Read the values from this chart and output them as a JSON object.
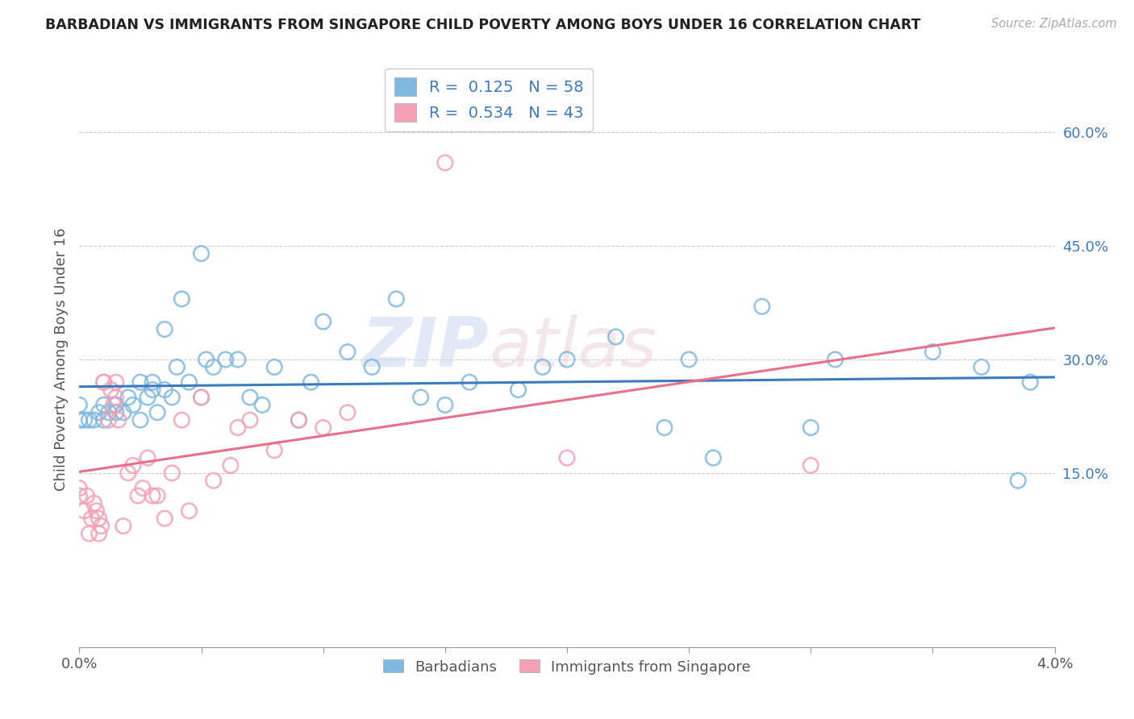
{
  "title": "BARBADIAN VS IMMIGRANTS FROM SINGAPORE CHILD POVERTY AMONG BOYS UNDER 16 CORRELATION CHART",
  "source_text": "Source: ZipAtlas.com",
  "ylabel": "Child Poverty Among Boys Under 16",
  "xlim": [
    0.0,
    4.0
  ],
  "ylim": [
    -0.08,
    0.68
  ],
  "yticks": [
    0.15,
    0.3,
    0.45,
    0.6
  ],
  "ytick_labels": [
    "15.0%",
    "30.0%",
    "45.0%",
    "60.0%"
  ],
  "color_blue": "#7fb8e0",
  "color_pink": "#f4a0b5",
  "color_blue_line": "#3c7abf",
  "color_pink_line": "#e8708a",
  "color_text_blue": "#3c7abf",
  "watermark_zip": "ZIP",
  "watermark_atlas": "atlas",
  "blue_scatter_x": [
    0.0,
    0.0,
    0.02,
    0.04,
    0.06,
    0.08,
    0.1,
    0.1,
    0.12,
    0.15,
    0.15,
    0.18,
    0.2,
    0.22,
    0.25,
    0.25,
    0.28,
    0.3,
    0.3,
    0.32,
    0.35,
    0.35,
    0.38,
    0.4,
    0.42,
    0.45,
    0.5,
    0.5,
    0.52,
    0.55,
    0.6,
    0.65,
    0.7,
    0.75,
    0.8,
    0.9,
    0.95,
    1.0,
    1.1,
    1.2,
    1.3,
    1.4,
    1.5,
    1.6,
    1.8,
    1.9,
    2.0,
    2.2,
    2.4,
    2.5,
    2.6,
    2.8,
    3.0,
    3.1,
    3.5,
    3.7,
    3.85,
    3.9
  ],
  "blue_scatter_y": [
    0.22,
    0.24,
    0.22,
    0.22,
    0.22,
    0.23,
    0.22,
    0.24,
    0.23,
    0.23,
    0.24,
    0.23,
    0.25,
    0.24,
    0.22,
    0.27,
    0.25,
    0.27,
    0.26,
    0.23,
    0.34,
    0.26,
    0.25,
    0.29,
    0.38,
    0.27,
    0.44,
    0.25,
    0.3,
    0.29,
    0.3,
    0.3,
    0.25,
    0.24,
    0.29,
    0.22,
    0.27,
    0.35,
    0.31,
    0.29,
    0.38,
    0.25,
    0.24,
    0.27,
    0.26,
    0.29,
    0.3,
    0.33,
    0.21,
    0.3,
    0.17,
    0.37,
    0.21,
    0.3,
    0.31,
    0.29,
    0.14,
    0.27
  ],
  "pink_scatter_x": [
    0.0,
    0.0,
    0.02,
    0.03,
    0.04,
    0.05,
    0.06,
    0.07,
    0.08,
    0.08,
    0.09,
    0.1,
    0.1,
    0.12,
    0.13,
    0.14,
    0.15,
    0.15,
    0.16,
    0.18,
    0.2,
    0.22,
    0.24,
    0.26,
    0.28,
    0.3,
    0.32,
    0.35,
    0.38,
    0.42,
    0.45,
    0.5,
    0.55,
    0.62,
    0.65,
    0.7,
    0.8,
    0.9,
    1.0,
    1.1,
    1.5,
    2.0,
    3.0
  ],
  "pink_scatter_y": [
    0.12,
    0.13,
    0.1,
    0.12,
    0.07,
    0.09,
    0.11,
    0.1,
    0.07,
    0.09,
    0.08,
    0.27,
    0.27,
    0.22,
    0.26,
    0.24,
    0.25,
    0.27,
    0.22,
    0.08,
    0.15,
    0.16,
    0.12,
    0.13,
    0.17,
    0.12,
    0.12,
    0.09,
    0.15,
    0.22,
    0.1,
    0.25,
    0.14,
    0.16,
    0.21,
    0.22,
    0.18,
    0.22,
    0.21,
    0.23,
    0.56,
    0.17,
    0.16
  ],
  "xtick_positions": [
    0.0,
    0.5,
    1.0,
    1.5,
    2.0,
    2.5,
    3.0,
    3.5,
    4.0
  ],
  "xtick_labels_show": [
    "0.0%",
    "",
    "",
    "",
    "",
    "",
    "",
    "",
    "4.0%"
  ]
}
